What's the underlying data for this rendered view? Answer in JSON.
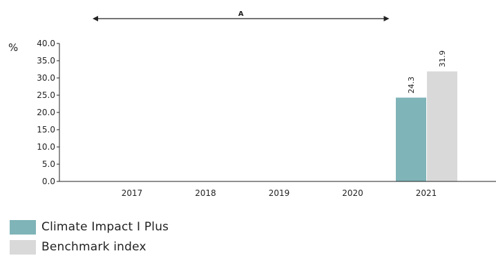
{
  "chart_data": {
    "type": "bar",
    "unit": "%",
    "categories": [
      "2017",
      "2018",
      "2019",
      "2020",
      "2021"
    ],
    "series": [
      {
        "name": "Climate Impact I Plus",
        "color": "#7fb4b8",
        "values": [
          null,
          null,
          null,
          null,
          24.3
        ]
      },
      {
        "name": "Benchmark index",
        "color": "#d9d9d9",
        "values": [
          null,
          null,
          null,
          null,
          31.9
        ]
      }
    ],
    "ylim": [
      0,
      40
    ],
    "yticks": [
      "0.0",
      "5.0",
      "10.0",
      "15.0",
      "20.0",
      "25.0",
      "30.0",
      "35.0",
      "40.0"
    ],
    "annotation": {
      "label": "A",
      "from": "2017",
      "to": "2020"
    },
    "legend_position": "bottom-left",
    "grid": false
  }
}
